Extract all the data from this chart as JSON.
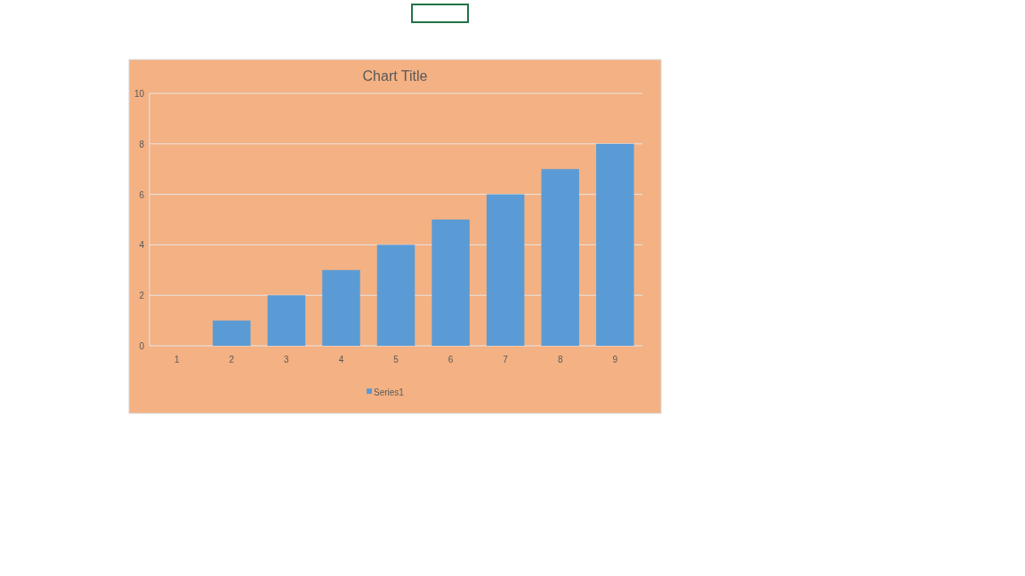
{
  "chart_data": {
    "type": "bar",
    "title": "Chart Title",
    "categories": [
      "1",
      "2",
      "3",
      "4",
      "5",
      "6",
      "7",
      "8",
      "9"
    ],
    "series": [
      {
        "name": "Series1",
        "color": "#5b9bd5",
        "values": [
          0,
          1,
          2,
          3,
          4,
          5,
          6,
          7,
          8
        ]
      }
    ],
    "ylim": [
      0,
      10
    ],
    "yticks": [
      0,
      2,
      4,
      6,
      8,
      10
    ],
    "grid": "y",
    "legend": "bottom"
  }
}
